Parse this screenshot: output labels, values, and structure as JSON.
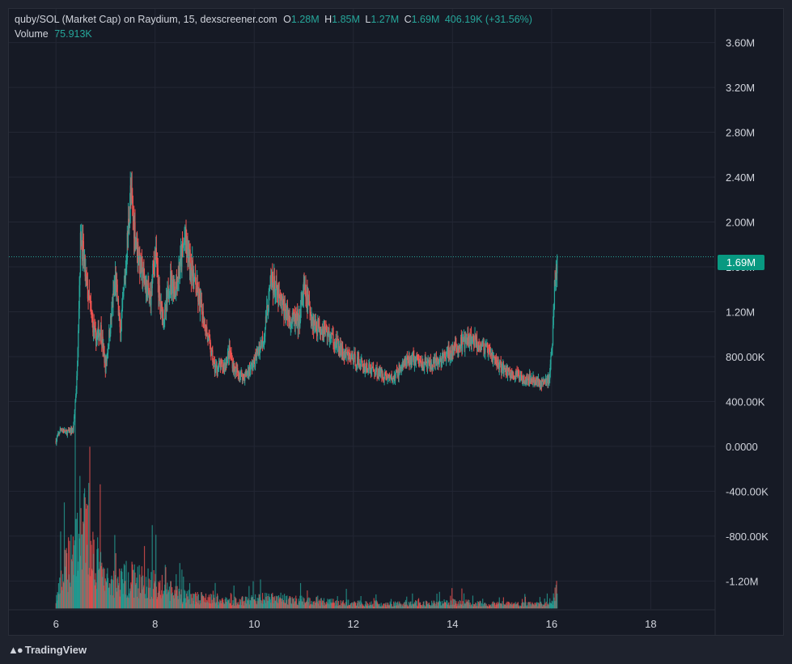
{
  "legend": {
    "title": "quby/SOL (Market Cap) on Raydium, 15, dexscreener.com",
    "o_label": "O",
    "o_value": "1.28M",
    "h_label": "H",
    "h_value": "1.85M",
    "l_label": "L",
    "l_value": "1.27M",
    "c_label": "C",
    "c_value": "1.69M",
    "change": "406.19K (+31.56%)",
    "volume_label": "Volume",
    "volume_value": "75.913K"
  },
  "last_price_label": "1.69M",
  "branding": "TradingView",
  "colors": {
    "up": "#26a69a",
    "down": "#ef5350",
    "last_price_tag": "#089981",
    "background": "#161a25",
    "grid": "#232734"
  },
  "chart_data": {
    "type": "candlestick",
    "y_ticks": [
      {
        "value": 3600000,
        "label": "3.60M"
      },
      {
        "value": 3200000,
        "label": "3.20M"
      },
      {
        "value": 2800000,
        "label": "2.80M"
      },
      {
        "value": 2400000,
        "label": "2.40M"
      },
      {
        "value": 2000000,
        "label": "2.00M"
      },
      {
        "value": 1600000,
        "label": "1.60M"
      },
      {
        "value": 1200000,
        "label": "1.20M"
      },
      {
        "value": 800000,
        "label": "800.00K"
      },
      {
        "value": 400000,
        "label": "400.00K"
      },
      {
        "value": 0,
        "label": "0.0000"
      },
      {
        "value": -400000,
        "label": "-400.00K"
      },
      {
        "value": -800000,
        "label": "-800.00K"
      },
      {
        "value": -1200000,
        "label": "-1.20M"
      }
    ],
    "x_ticks": [
      {
        "value": 6,
        "label": "6"
      },
      {
        "value": 8,
        "label": "8"
      },
      {
        "value": 10,
        "label": "10"
      },
      {
        "value": 12,
        "label": "12"
      },
      {
        "value": 14,
        "label": "14"
      },
      {
        "value": 16,
        "label": "16"
      },
      {
        "value": 18,
        "label": "18"
      }
    ],
    "ylim": [
      -1450000,
      3900000
    ],
    "xlim": [
      5.05,
      19.3
    ],
    "last_price": 1690000,
    "price_path": [
      [
        6.0,
        50000
      ],
      [
        6.1,
        160000
      ],
      [
        6.2,
        120000
      ],
      [
        6.35,
        150000
      ],
      [
        6.42,
        600000
      ],
      [
        6.5,
        1900000
      ],
      [
        6.6,
        1500000
      ],
      [
        6.7,
        1200000
      ],
      [
        6.8,
        950000
      ],
      [
        6.9,
        1050000
      ],
      [
        7.0,
        700000
      ],
      [
        7.1,
        1100000
      ],
      [
        7.2,
        1500000
      ],
      [
        7.3,
        1000000
      ],
      [
        7.4,
        1550000
      ],
      [
        7.5,
        2250000
      ],
      [
        7.6,
        1900000
      ],
      [
        7.7,
        1600000
      ],
      [
        7.8,
        1450000
      ],
      [
        7.9,
        1300000
      ],
      [
        8.0,
        1750000
      ],
      [
        8.1,
        1250000
      ],
      [
        8.2,
        1150000
      ],
      [
        8.3,
        1500000
      ],
      [
        8.4,
        1400000
      ],
      [
        8.5,
        1600000
      ],
      [
        8.6,
        1850000
      ],
      [
        8.7,
        1650000
      ],
      [
        8.8,
        1450000
      ],
      [
        9.0,
        1100000
      ],
      [
        9.2,
        700000
      ],
      [
        9.4,
        720000
      ],
      [
        9.5,
        850000
      ],
      [
        9.6,
        680000
      ],
      [
        9.8,
        620000
      ],
      [
        10.0,
        750000
      ],
      [
        10.2,
        1000000
      ],
      [
        10.35,
        1500000
      ],
      [
        10.5,
        1300000
      ],
      [
        10.7,
        1150000
      ],
      [
        10.9,
        1100000
      ],
      [
        11.0,
        1400000
      ],
      [
        11.2,
        1100000
      ],
      [
        11.4,
        1050000
      ],
      [
        11.6,
        950000
      ],
      [
        11.8,
        820000
      ],
      [
        12.0,
        780000
      ],
      [
        12.2,
        720000
      ],
      [
        12.4,
        680000
      ],
      [
        12.6,
        640000
      ],
      [
        12.8,
        600000
      ],
      [
        13.0,
        730000
      ],
      [
        13.2,
        780000
      ],
      [
        13.4,
        740000
      ],
      [
        13.6,
        720000
      ],
      [
        13.8,
        780000
      ],
      [
        14.0,
        850000
      ],
      [
        14.2,
        920000
      ],
      [
        14.4,
        950000
      ],
      [
        14.6,
        900000
      ],
      [
        14.8,
        800000
      ],
      [
        15.0,
        700000
      ],
      [
        15.2,
        640000
      ],
      [
        15.4,
        620000
      ],
      [
        15.6,
        600000
      ],
      [
        15.8,
        560000
      ],
      [
        15.95,
        600000
      ],
      [
        16.02,
        950000
      ],
      [
        16.07,
        1550000
      ],
      [
        16.12,
        1690000
      ]
    ],
    "volume_profile": [
      [
        6.0,
        0.1
      ],
      [
        6.5,
        1.0
      ],
      [
        7.0,
        0.3
      ],
      [
        7.5,
        0.35
      ],
      [
        8.0,
        0.28
      ],
      [
        8.5,
        0.15
      ],
      [
        9.5,
        0.08
      ],
      [
        10.3,
        0.12
      ],
      [
        11.0,
        0.09
      ],
      [
        12.0,
        0.06
      ],
      [
        13.0,
        0.05
      ],
      [
        14.0,
        0.07
      ],
      [
        15.0,
        0.05
      ],
      [
        16.0,
        0.05
      ],
      [
        16.1,
        0.3
      ]
    ]
  }
}
